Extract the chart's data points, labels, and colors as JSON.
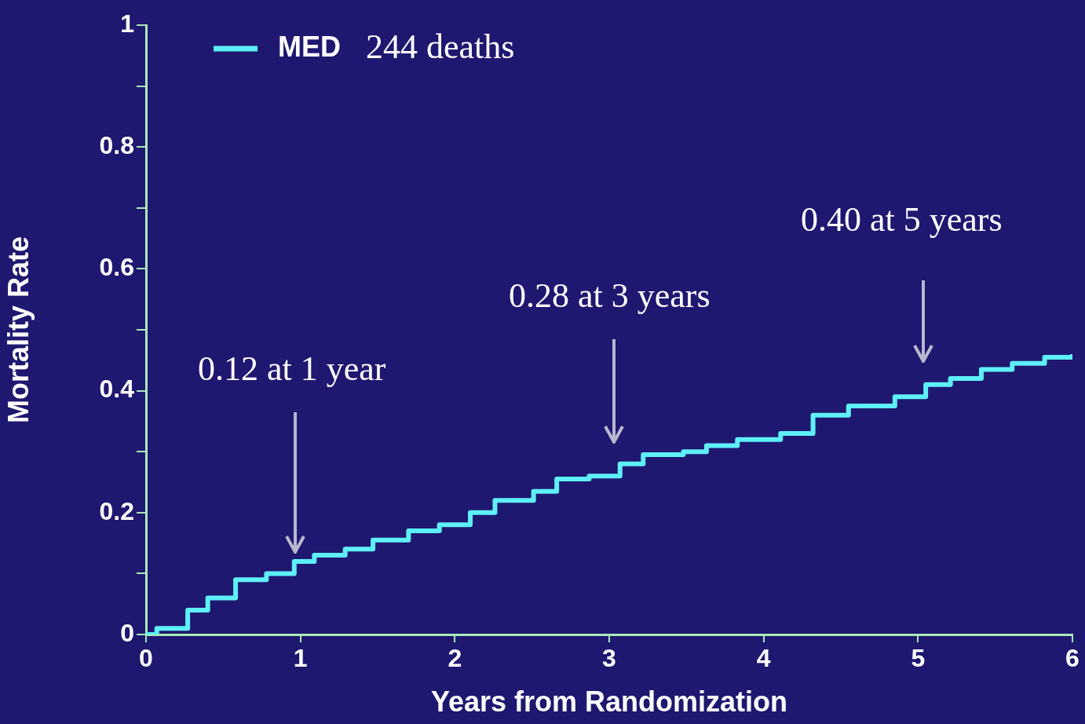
{
  "chart_data": {
    "type": "step",
    "xlabel": "Years from Randomization",
    "ylabel": "Mortality Rate",
    "x": [
      0,
      0.07,
      0.27,
      0.4,
      0.58,
      0.78,
      0.96,
      1.09,
      1.29,
      1.47,
      1.7,
      1.9,
      2.1,
      2.26,
      2.51,
      2.66,
      2.87,
      3.07,
      3.22,
      3.48,
      3.63,
      3.83,
      4.11,
      4.32,
      4.49,
      4.55,
      4.85,
      5.05,
      5.21,
      5.41,
      5.61,
      5.82,
      6
    ],
    "series": [
      {
        "name": "MED",
        "color": "#5ef0f8",
        "values": [
          0,
          0.01,
          0.04,
          0.06,
          0.09,
          0.1,
          0.12,
          0.13,
          0.14,
          0.155,
          0.17,
          0.18,
          0.2,
          0.22,
          0.235,
          0.255,
          0.26,
          0.28,
          0.295,
          0.3,
          0.31,
          0.32,
          0.33,
          0.36,
          0.36,
          0.375,
          0.39,
          0.41,
          0.42,
          0.435,
          0.445,
          0.455,
          0.46
        ]
      }
    ],
    "xlim": [
      0,
      6
    ],
    "xticks": [
      0,
      1,
      2,
      3,
      4,
      5,
      6
    ],
    "ylim": [
      0,
      1
    ],
    "yticks": [
      0,
      {
        "value": 0.1,
        "label": null
      },
      0.2,
      {
        "value": 0.3,
        "label": null
      },
      0.4,
      {
        "value": 0.5,
        "label": null
      },
      0.6,
      {
        "value": 0.7,
        "label": null
      },
      0.8,
      {
        "value": 0.9,
        "label": null
      },
      1
    ],
    "legend": "top left",
    "grid": false,
    "marker": "none",
    "annotations": [
      "244 deaths",
      "0.12 at 1 year",
      "0.28 at 3 years",
      "0.40 at 5 years"
    ]
  }
}
